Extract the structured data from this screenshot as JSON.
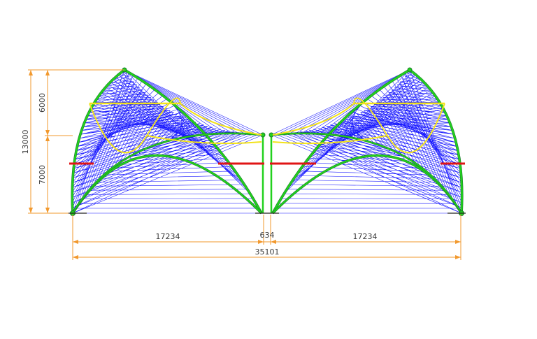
{
  "drawing": {
    "dimensions": {
      "total_height": "13000",
      "upper_height": "6000",
      "lower_height": "7000",
      "left_span": "17234",
      "gap": "634",
      "right_span": "17234",
      "total_span": "35101"
    },
    "colors": {
      "mesh": "#0000ff",
      "frame": "#22d11e",
      "frame_dark": "#1a7a2a",
      "cable": "#f2e21b",
      "tie": "#e01515",
      "dimension": "#f2992e",
      "ground": "#222222"
    }
  }
}
